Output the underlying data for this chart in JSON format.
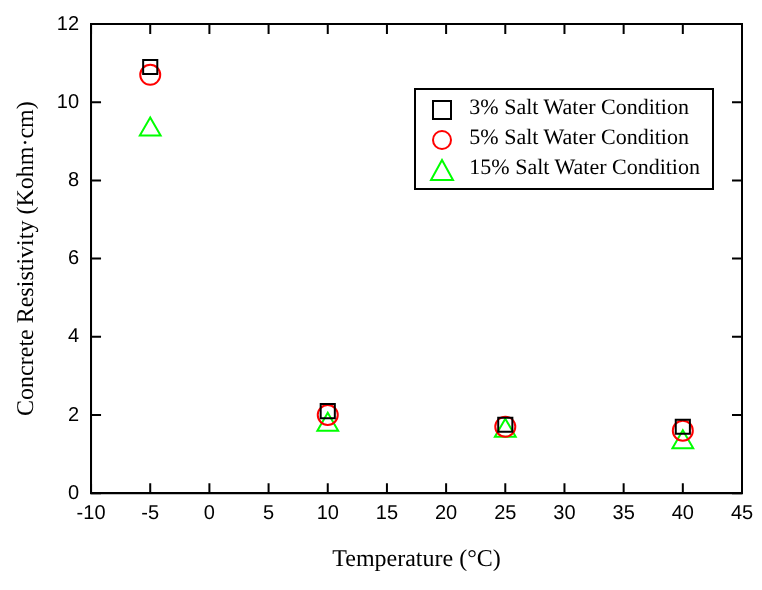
{
  "chart_data": {
    "type": "scatter",
    "xlabel": "Temperature (°C)",
    "ylabel": "Concrete Resistivity (Kohm·cm)",
    "x": [
      -5,
      10,
      25,
      40
    ],
    "series": [
      {
        "name": "3% Salt Water Condition",
        "color": "#000000",
        "marker": "square",
        "values": [
          10.9,
          2.1,
          1.75,
          1.7
        ]
      },
      {
        "name": "5% Salt Water Condition",
        "color": "#ff0000",
        "marker": "circle",
        "values": [
          10.7,
          2.0,
          1.7,
          1.6
        ]
      },
      {
        "name": "15% Salt Water Condition",
        "color": "#00ff00",
        "marker": "triangle",
        "values": [
          9.3,
          1.75,
          1.6,
          1.3
        ]
      }
    ],
    "xlim": [
      -10,
      45
    ],
    "xticks": [
      -10,
      -5,
      0,
      5,
      10,
      15,
      20,
      25,
      30,
      35,
      40,
      45
    ],
    "ylim": [
      0,
      12
    ],
    "yticks": [
      0,
      2,
      4,
      6,
      8,
      10,
      12
    ],
    "grid": false,
    "legend": "top right"
  }
}
